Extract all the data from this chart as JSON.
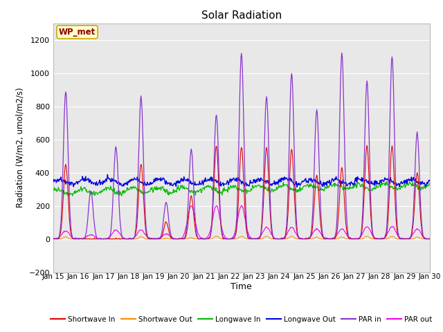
{
  "title": "Solar Radiation",
  "xlabel": "Time",
  "ylabel": "Radiation (W/m2, umol/m2/s)",
  "ylim": [
    -200,
    1300
  ],
  "yticks": [
    -200,
    0,
    200,
    400,
    600,
    800,
    1000,
    1200
  ],
  "fig_bg_color": "#ffffff",
  "plot_bg_color": "#e8e8e8",
  "box_label": "WP_met",
  "series_colors": {
    "sw_in": "#dd0000",
    "sw_out": "#ff8800",
    "lw_in": "#00bb00",
    "lw_out": "#0000dd",
    "par_in": "#8833cc",
    "par_out": "#ee00ee"
  },
  "legend_labels": [
    "Shortwave In",
    "Shortwave Out",
    "Longwave In",
    "Longwave Out",
    "PAR in",
    "PAR out"
  ],
  "par_in_peaks": {
    "15": 890,
    "16": 290,
    "17": 560,
    "18": 860,
    "19": 220,
    "20": 540,
    "21": 750,
    "22": 1120,
    "23": 860,
    "24": 1000,
    "25": 780,
    "26": 1120,
    "27": 950,
    "28": 1100,
    "29": 640
  },
  "sw_in_peaks": {
    "15": 450,
    "16": 0,
    "17": 0,
    "18": 450,
    "19": 100,
    "20": 260,
    "21": 560,
    "22": 560,
    "23": 550,
    "24": 540,
    "25": 380,
    "26": 430,
    "27": 560,
    "28": 560,
    "29": 400
  },
  "par_out_peaks": {
    "15": 50,
    "16": 25,
    "17": 55,
    "18": 55,
    "19": 30,
    "20": 200,
    "21": 200,
    "22": 200,
    "23": 70,
    "24": 70,
    "25": 60,
    "26": 60,
    "27": 75,
    "28": 75,
    "29": 60
  }
}
